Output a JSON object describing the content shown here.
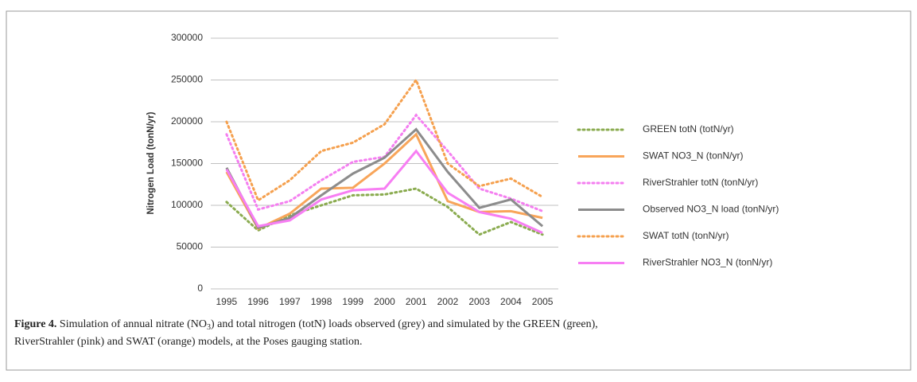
{
  "chart_data": {
    "type": "line",
    "ylabel": "Nitrogen Load (tonN/yr)",
    "categories": [
      "1995",
      "1996",
      "1997",
      "1998",
      "1999",
      "2000",
      "2001",
      "2002",
      "2003",
      "2004",
      "2005"
    ],
    "ylim": [
      0,
      300000
    ],
    "yticks": [
      0,
      50000,
      100000,
      150000,
      200000,
      250000,
      300000
    ],
    "grid": true,
    "legend": "right",
    "series": [
      {
        "name": "GREEN totN (totN/yr)",
        "color": "#8aab4f",
        "style": "dotted",
        "values": [
          104000,
          70000,
          88000,
          100000,
          112000,
          113000,
          120000,
          98000,
          65000,
          80000,
          65000
        ]
      },
      {
        "name": "SWAT NO3_N (tonN/yr)",
        "color": "#f8a55a",
        "style": "solid",
        "values": [
          140000,
          72000,
          90000,
          120000,
          121000,
          150000,
          185000,
          105000,
          92000,
          93000,
          85000
        ]
      },
      {
        "name": "RiverStrahler totN (tonN/yr)",
        "color": "#f47ef0",
        "style": "dotted",
        "values": [
          185000,
          95000,
          105000,
          130000,
          152000,
          158000,
          208000,
          165000,
          120000,
          108000,
          93000
        ]
      },
      {
        "name": "Observed NO3_N load (tonN/yr)",
        "color": "#8c8c8c",
        "style": "solid",
        "values": [
          145000,
          73000,
          85000,
          112000,
          138000,
          157000,
          191000,
          140000,
          97000,
          107000,
          75000
        ]
      },
      {
        "name": "SWAT totN (tonN/yr)",
        "color": "#f5a04e",
        "style": "dotted",
        "values": [
          200000,
          106000,
          130000,
          165000,
          175000,
          197000,
          250000,
          150000,
          123000,
          132000,
          110000
        ]
      },
      {
        "name": "RiverStrahler NO3_N (tonN/yr)",
        "color": "#f77ef3",
        "style": "solid",
        "values": [
          143000,
          75000,
          82000,
          107000,
          118000,
          120000,
          165000,
          115000,
          92000,
          84000,
          67000
        ]
      }
    ]
  },
  "caption": {
    "label": "Figure 4.",
    "line1": [
      " Simulation of annual nitrate (NO",
      "3",
      ") and total nitrogen (totN) loads observed (grey) and simulated by the GREEN (green),"
    ],
    "line2": "RiverStrahler (pink) and SWAT (orange) models, at the Poses gauging station."
  }
}
